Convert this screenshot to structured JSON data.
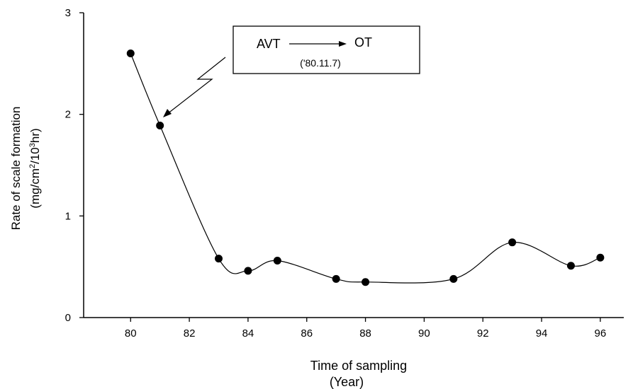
{
  "chart_data": {
    "type": "line",
    "title": "",
    "xlabel_line1": "Time of sampling",
    "xlabel_line2": "(Year)",
    "ylabel_line1": "Rate of scale formation",
    "ylabel_line2_parts": [
      "(mg/cm",
      "2",
      "/10",
      "3",
      "hr)"
    ],
    "xlim": [
      78.4,
      96.8
    ],
    "ylim": [
      0,
      3
    ],
    "xticks": [
      80,
      82,
      84,
      86,
      88,
      90,
      92,
      94,
      96
    ],
    "yticks": [
      0,
      1,
      2,
      3
    ],
    "grid": false,
    "smooth": true,
    "x": [
      80,
      81,
      83,
      84,
      85,
      87,
      88,
      91,
      93,
      95,
      96
    ],
    "y": [
      2.6,
      1.89,
      0.58,
      0.46,
      0.56,
      0.38,
      0.35,
      0.38,
      0.74,
      0.51,
      0.59
    ],
    "annotation": {
      "from_label": "AVT",
      "to_label": "OT",
      "date": "('80.11.7)",
      "points_to": [
        81.4,
        1.98
      ]
    }
  }
}
